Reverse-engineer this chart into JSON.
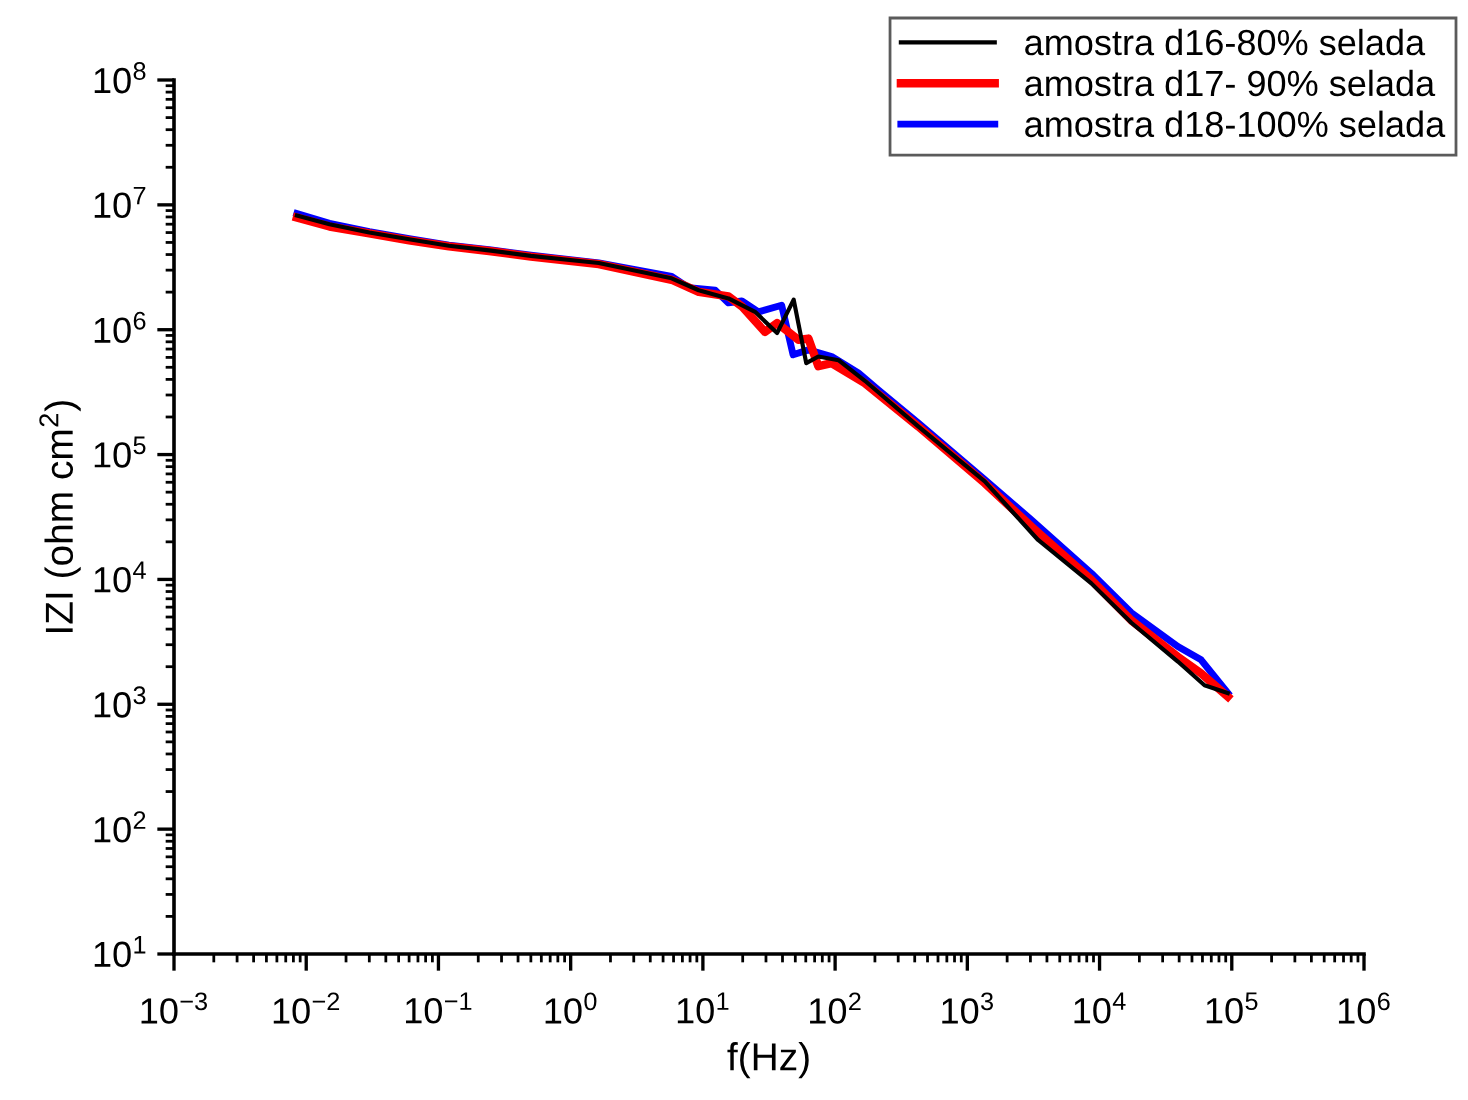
{
  "chart_data": {
    "type": "line",
    "xlabel": "f(Hz)",
    "ylabel": "IZI (ohm cm$^{2}$)",
    "log": "xy",
    "grid": false,
    "legend": "top right",
    "marker": "none",
    "line_style": "solid",
    "xlim": [
      0.001,
      1000000
    ],
    "ylim": [
      10,
      100000000
    ],
    "xticks": [
      {
        "value": 0.001,
        "label": "10$^{−3}$"
      },
      {
        "value": 0.01,
        "label": "10$^{−2}$"
      },
      {
        "value": 0.1,
        "label": "10$^{−1}$"
      },
      {
        "value": 1,
        "label": "10$^{0}$"
      },
      {
        "value": 10,
        "label": "10$^{1}$"
      },
      {
        "value": 100,
        "label": "10$^{2}$"
      },
      {
        "value": 1000,
        "label": "10$^{3}$"
      },
      {
        "value": 10000,
        "label": "10$^{4}$"
      },
      {
        "value": 100000,
        "label": "10$^{5}$"
      },
      {
        "value": 1000000,
        "label": "10$^{6}$"
      }
    ],
    "yticks": [
      {
        "value": 10,
        "label": "10$^{1}$"
      },
      {
        "value": 100,
        "label": "10$^{2}$"
      },
      {
        "value": 1000,
        "label": "10$^{3}$"
      },
      {
        "value": 10000,
        "label": "10$^{4}$"
      },
      {
        "value": 100000,
        "label": "10$^{5}$"
      },
      {
        "value": 1000000,
        "label": "10$^{6}$"
      },
      {
        "value": 10000000,
        "label": "10$^{7}$"
      },
      {
        "value": 100000000,
        "label": "10$^{8}$"
      }
    ],
    "series": [
      {
        "name": "amostra d16-80% selada",
        "color": "#000000",
        "x": [
          0.0085,
          0.015,
          0.03,
          0.06,
          0.12,
          0.25,
          0.5,
          1.63,
          5.8,
          9.3,
          15.6,
          24.8,
          36.4,
          48.6,
          60.5,
          74.7,
          106,
          168,
          425,
          1355,
          3430,
          8670,
          17400,
          39100,
          62200,
          93300
        ],
        "values": [
          8200000,
          7000000,
          6000000,
          5300000,
          4700000,
          4300000,
          3900000,
          3420000,
          2580000,
          2070000,
          1780000,
          1390000,
          940000,
          1740000,
          540000,
          610000,
          570000,
          390000,
          168000,
          61000,
          20700,
          9300,
          4500,
          2200,
          1420,
          1230
        ]
      },
      {
        "name": "amostra d17- 90% selada",
        "color": "#ff0000",
        "x": [
          0.0085,
          0.015,
          0.03,
          0.06,
          0.12,
          0.25,
          0.5,
          1.63,
          5.8,
          9.3,
          15.6,
          19.7,
          29.5,
          36.4,
          52.7,
          62.8,
          74.7,
          94,
          168,
          425,
          1355,
          3050,
          8670,
          17400,
          39100,
          58600,
          93300
        ],
        "values": [
          7900000,
          6700000,
          5900000,
          5200000,
          4650000,
          4250000,
          3850000,
          3350000,
          2510000,
          2010000,
          1850000,
          1540000,
          960000,
          1130000,
          830000,
          850000,
          510000,
          540000,
          373000,
          168000,
          59000,
          26500,
          9900,
          4700,
          2400,
          1770,
          1150
        ]
      },
      {
        "name": "amostra d18-100% selada",
        "color": "#0000ff",
        "x": [
          0.0085,
          0.015,
          0.03,
          0.06,
          0.12,
          0.25,
          0.5,
          1.63,
          5.8,
          7.8,
          12.4,
          15.6,
          19.7,
          26.3,
          39.4,
          48.1,
          62.8,
          94,
          150,
          212,
          425,
          1355,
          3050,
          8670,
          17400,
          39100,
          58600,
          93300
        ],
        "values": [
          8500000,
          7100000,
          6100000,
          5350000,
          4750000,
          4350000,
          3950000,
          3420000,
          2670000,
          2170000,
          2070000,
          1640000,
          1700000,
          1390000,
          1570000,
          630000,
          690000,
          610000,
          450000,
          330000,
          179000,
          63000,
          30000,
          11200,
          5400,
          2900,
          2270,
          1230
        ]
      }
    ]
  }
}
